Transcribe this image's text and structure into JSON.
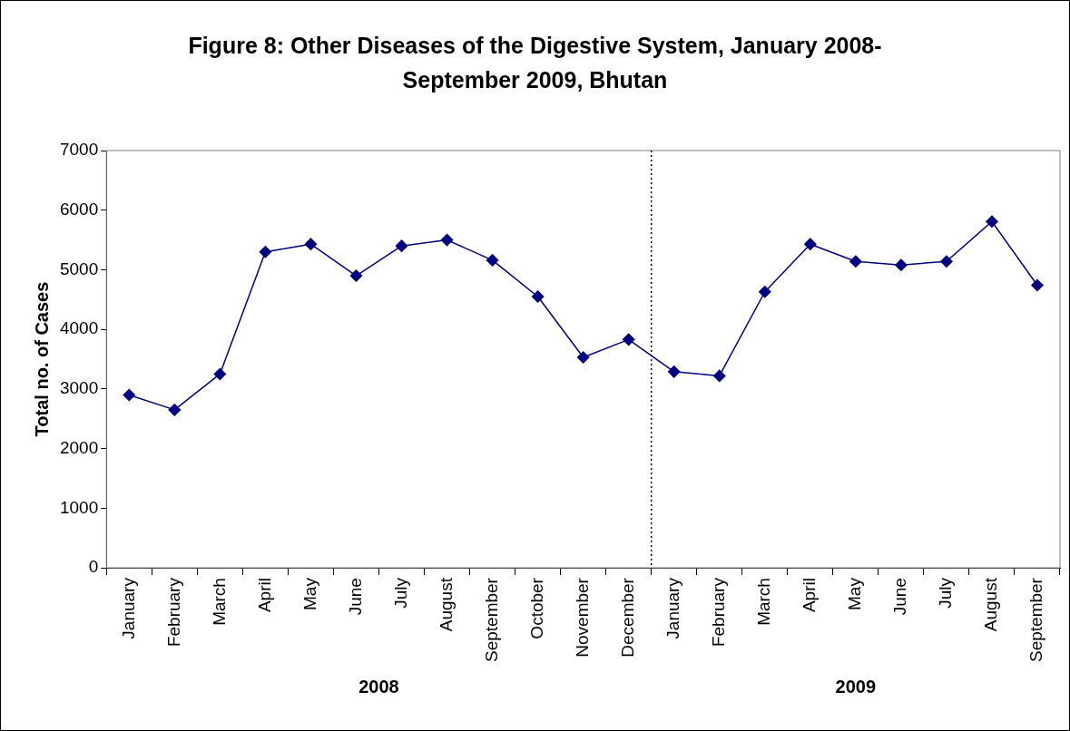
{
  "chart_data": {
    "type": "line",
    "title": "Figure 8: Other Diseases of the Digestive System, January 2008-September 2009, Bhutan",
    "ylabel": "Total no. of Cases",
    "categories": [
      "January",
      "February",
      "March",
      "April",
      "May",
      "June",
      "July",
      "August",
      "September",
      "October",
      "November",
      "December",
      "January",
      "February",
      "March",
      "April",
      "May",
      "June",
      "July",
      "August",
      "September"
    ],
    "series": [
      {
        "color": "#000080",
        "values": [
          2900,
          2650,
          3250,
          5300,
          5430,
          4900,
          5400,
          5500,
          5160,
          4550,
          3530,
          3830,
          3290,
          3220,
          4630,
          5430,
          5140,
          5080,
          5140,
          5810,
          4740
        ]
      }
    ],
    "ylim": [
      0,
      7000
    ],
    "yticks": [
      0,
      1000,
      2000,
      3000,
      4000,
      5000,
      6000,
      7000
    ],
    "grid": false,
    "legend": false,
    "marker": "diamond",
    "line_style": "solid",
    "annotations": [
      "2008",
      "2009"
    ]
  }
}
